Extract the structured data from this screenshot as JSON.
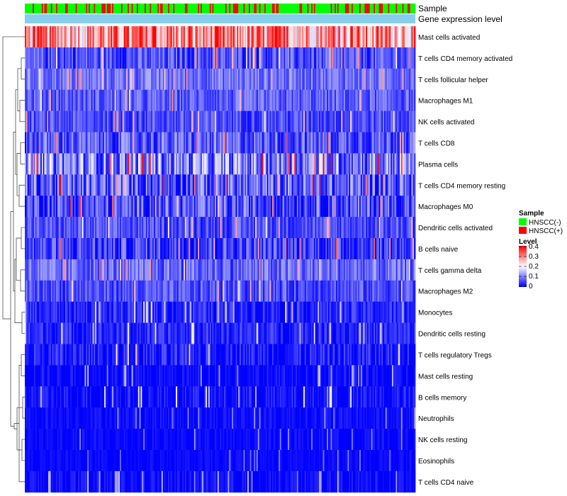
{
  "chart_data": {
    "type": "heatmap",
    "title": "",
    "annotations": {
      "sample_label": "Sample",
      "gene_label": "Gene expression level"
    },
    "columns": 300,
    "sample_groups": [
      "HNSCC(-)",
      "HNSCC(+)"
    ],
    "rows": [
      {
        "name": "Mast cells activated",
        "mean": 0.28,
        "spread": 0.12
      },
      {
        "name": "T cells CD4 memory activated",
        "mean": 0.06,
        "spread": 0.06
      },
      {
        "name": "T cells follicular helper",
        "mean": 0.09,
        "spread": 0.05
      },
      {
        "name": "Macrophages M1",
        "mean": 0.07,
        "spread": 0.05
      },
      {
        "name": "NK cells activated",
        "mean": 0.06,
        "spread": 0.05
      },
      {
        "name": "T cells CD8",
        "mean": 0.07,
        "spread": 0.07
      },
      {
        "name": "Plasma cells",
        "mean": 0.1,
        "spread": 0.1
      },
      {
        "name": "T cells CD4 memory resting",
        "mean": 0.07,
        "spread": 0.09
      },
      {
        "name": "Macrophages M0",
        "mean": 0.06,
        "spread": 0.08
      },
      {
        "name": "Dendritic cells activated",
        "mean": 0.06,
        "spread": 0.05
      },
      {
        "name": "B cells naive",
        "mean": 0.05,
        "spread": 0.07
      },
      {
        "name": "T cells gamma delta",
        "mean": 0.08,
        "spread": 0.06
      },
      {
        "name": "Macrophages M2",
        "mean": 0.06,
        "spread": 0.05
      },
      {
        "name": "Monocytes",
        "mean": 0.03,
        "spread": 0.04
      },
      {
        "name": "Dendritic cells resting",
        "mean": 0.03,
        "spread": 0.04
      },
      {
        "name": "T cells regulatory  Tregs",
        "mean": 0.02,
        "spread": 0.05
      },
      {
        "name": "Mast cells resting",
        "mean": 0.005,
        "spread": 0.03
      },
      {
        "name": "B cells memory",
        "mean": 0.01,
        "spread": 0.04
      },
      {
        "name": "Neutrophils",
        "mean": 0.01,
        "spread": 0.02
      },
      {
        "name": "NK cells resting",
        "mean": 0.005,
        "spread": 0.02
      },
      {
        "name": "Eosinophils",
        "mean": 0.005,
        "spread": 0.015
      },
      {
        "name": "T cells CD4 naive",
        "mean": 0.005,
        "spread": 0.03
      }
    ],
    "value_range": [
      0,
      0.4
    ],
    "colorscale": [
      "#0000ff",
      "#ffffff",
      "#ff0000"
    ],
    "legend": {
      "position": "right",
      "sample_title": "Sample",
      "sample_items": [
        {
          "label": "HNSCC(-)",
          "color": "#00ff00"
        },
        {
          "label": "HNSCC(+)",
          "color": "#ff0000"
        }
      ],
      "level_title": "Level",
      "level_ticks": [
        "0.4",
        "0.3",
        "0.2",
        "0.1",
        "0"
      ]
    },
    "colors": {
      "group_negative": "#00ff00",
      "group_positive": "#ff0000",
      "gene_bar": "#87ceeb",
      "high": "#ff0000",
      "mid": "#ffffff",
      "low": "#0000ff"
    }
  }
}
